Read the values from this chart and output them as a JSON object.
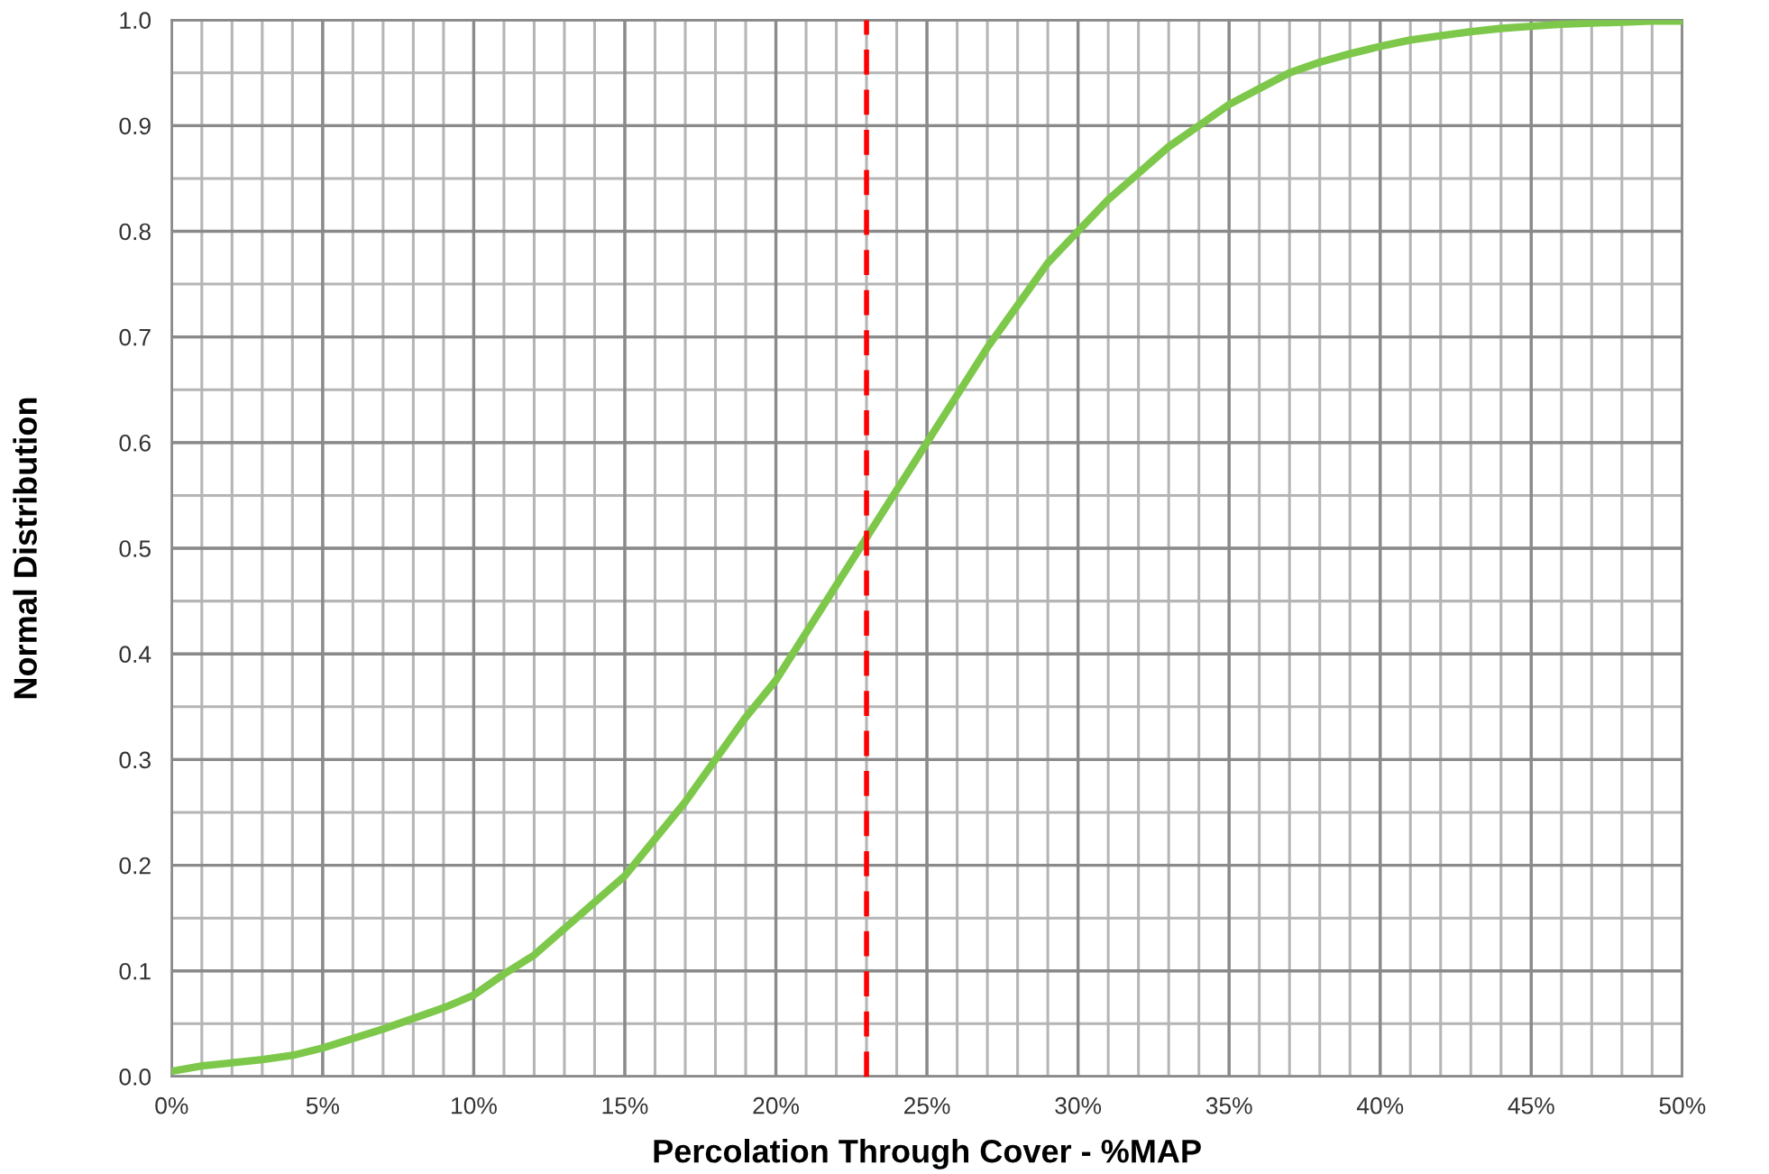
{
  "chart_data": {
    "type": "line",
    "xlabel": "Percolation Through Cover - %MAP",
    "ylabel": "Normal Distribution",
    "x": [
      0,
      1,
      2,
      3,
      4,
      5,
      6,
      7,
      8,
      9,
      10,
      11,
      12,
      13,
      14,
      15,
      16,
      17,
      18,
      19,
      20,
      21,
      22,
      23,
      24,
      25,
      26,
      27,
      28,
      29,
      30,
      31,
      32,
      33,
      34,
      35,
      36,
      37,
      38,
      39,
      40,
      41,
      42,
      43,
      44,
      45,
      46,
      47,
      48,
      49,
      50
    ],
    "series": [
      {
        "color": "#7dc84a",
        "values": [
          0.005,
          0.01,
          0.013,
          0.016,
          0.02,
          0.027,
          0.036,
          0.045,
          0.055,
          0.065,
          0.077,
          0.097,
          0.115,
          0.14,
          0.165,
          0.19,
          0.225,
          0.26,
          0.3,
          0.34,
          0.375,
          0.42,
          0.465,
          0.51,
          0.555,
          0.6,
          0.645,
          0.69,
          0.73,
          0.77,
          0.8,
          0.83,
          0.855,
          0.88,
          0.9,
          0.92,
          0.935,
          0.95,
          0.96,
          0.968,
          0.975,
          0.981,
          0.985,
          0.989,
          0.992,
          0.994,
          0.996,
          0.997,
          0.998,
          0.999,
          0.999
        ]
      }
    ],
    "xlim": [
      0,
      50
    ],
    "ylim": [
      0,
      1
    ],
    "xticks": [
      {
        "value": 0,
        "label": "0%"
      },
      {
        "value": 1,
        "label": null
      },
      {
        "value": 2,
        "label": null
      },
      {
        "value": 3,
        "label": null
      },
      {
        "value": 4,
        "label": null
      },
      {
        "value": 5,
        "label": "5%"
      },
      {
        "value": 6,
        "label": null
      },
      {
        "value": 7,
        "label": null
      },
      {
        "value": 8,
        "label": null
      },
      {
        "value": 9,
        "label": null
      },
      {
        "value": 10,
        "label": "10%"
      },
      {
        "value": 11,
        "label": null
      },
      {
        "value": 12,
        "label": null
      },
      {
        "value": 13,
        "label": null
      },
      {
        "value": 14,
        "label": null
      },
      {
        "value": 15,
        "label": "15%"
      },
      {
        "value": 16,
        "label": null
      },
      {
        "value": 17,
        "label": null
      },
      {
        "value": 18,
        "label": null
      },
      {
        "value": 19,
        "label": null
      },
      {
        "value": 20,
        "label": "20%"
      },
      {
        "value": 21,
        "label": null
      },
      {
        "value": 22,
        "label": null
      },
      {
        "value": 23,
        "label": null
      },
      {
        "value": 24,
        "label": null
      },
      {
        "value": 25,
        "label": "25%"
      },
      {
        "value": 26,
        "label": null
      },
      {
        "value": 27,
        "label": null
      },
      {
        "value": 28,
        "label": null
      },
      {
        "value": 29,
        "label": null
      },
      {
        "value": 30,
        "label": "30%"
      },
      {
        "value": 31,
        "label": null
      },
      {
        "value": 32,
        "label": null
      },
      {
        "value": 33,
        "label": null
      },
      {
        "value": 34,
        "label": null
      },
      {
        "value": 35,
        "label": "35%"
      },
      {
        "value": 36,
        "label": null
      },
      {
        "value": 37,
        "label": null
      },
      {
        "value": 38,
        "label": null
      },
      {
        "value": 39,
        "label": null
      },
      {
        "value": 40,
        "label": "40%"
      },
      {
        "value": 41,
        "label": null
      },
      {
        "value": 42,
        "label": null
      },
      {
        "value": 43,
        "label": null
      },
      {
        "value": 44,
        "label": null
      },
      {
        "value": 45,
        "label": "45%"
      },
      {
        "value": 46,
        "label": null
      },
      {
        "value": 47,
        "label": null
      },
      {
        "value": 48,
        "label": null
      },
      {
        "value": 49,
        "label": null
      },
      {
        "value": 50,
        "label": "50%"
      }
    ],
    "yticks": [
      {
        "value": 0,
        "label": "0.0"
      },
      {
        "value": 0.05,
        "label": null
      },
      {
        "value": 0.1,
        "label": "0.1"
      },
      {
        "value": 0.15,
        "label": null
      },
      {
        "value": 0.2,
        "label": "0.2"
      },
      {
        "value": 0.25,
        "label": null
      },
      {
        "value": 0.3,
        "label": "0.3"
      },
      {
        "value": 0.35,
        "label": null
      },
      {
        "value": 0.4,
        "label": "0.4"
      },
      {
        "value": 0.45,
        "label": null
      },
      {
        "value": 0.5,
        "label": "0.5"
      },
      {
        "value": 0.55,
        "label": null
      },
      {
        "value": 0.6,
        "label": "0.6"
      },
      {
        "value": 0.65,
        "label": null
      },
      {
        "value": 0.7,
        "label": "0.7"
      },
      {
        "value": 0.75,
        "label": null
      },
      {
        "value": 0.8,
        "label": "0.8"
      },
      {
        "value": 0.85,
        "label": null
      },
      {
        "value": 0.9,
        "label": "0.9"
      },
      {
        "value": 0.95,
        "label": null
      },
      {
        "value": 1,
        "label": "1.0"
      }
    ],
    "ref_lines": [
      {
        "axis": "x",
        "value": 23,
        "color": "#ff0000",
        "line_style": "dashed"
      }
    ],
    "grid": true,
    "marker": "none",
    "line_style": "solid"
  }
}
